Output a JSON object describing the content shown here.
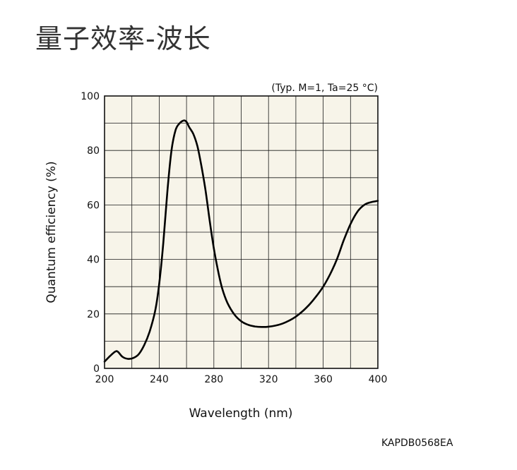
{
  "page": {
    "title": "量子效率-波长",
    "code": "KAPDB0568EA"
  },
  "colors": {
    "plot_background": "#f7f4e9",
    "grid": "#1a1a1a",
    "curve": "#000000"
  },
  "chart_data": {
    "type": "line",
    "title": "",
    "note": "(Typ. M=1, Ta=25 °C)",
    "xlabel": "Wavelength (nm)",
    "ylabel": "Quantum efficiency (%)",
    "xlim": [
      200,
      400
    ],
    "ylim": [
      0,
      100
    ],
    "xticks": [
      200,
      240,
      280,
      320,
      360,
      400
    ],
    "yticks": [
      0,
      20,
      40,
      60,
      80,
      100
    ],
    "x_grid_step": 20,
    "y_grid_step": 10,
    "grid": true,
    "series": [
      {
        "x": [
          200,
          204,
          208,
          210,
          213,
          217,
          221,
          225,
          229,
          233,
          237,
          240,
          243,
          246,
          249,
          252,
          255,
          258,
          260,
          262,
          265,
          268,
          271,
          274,
          277,
          280,
          283,
          286,
          290,
          295,
          300,
          305,
          310,
          315,
          320,
          325,
          330,
          335,
          340,
          345,
          350,
          355,
          360,
          365,
          370,
          375,
          380,
          385,
          390,
          395,
          400
        ],
        "y": [
          2.5,
          4.5,
          6.2,
          6.0,
          4.3,
          3.5,
          3.8,
          5.2,
          8.5,
          13.5,
          21.0,
          31.0,
          46.0,
          65.0,
          80.0,
          87.5,
          90.0,
          91.0,
          90.5,
          88.5,
          86.0,
          81.5,
          74.0,
          65.0,
          54.0,
          44.0,
          36.0,
          29.5,
          24.0,
          19.8,
          17.3,
          16.0,
          15.4,
          15.2,
          15.3,
          15.7,
          16.4,
          17.5,
          19.0,
          21.0,
          23.5,
          26.5,
          30.0,
          34.5,
          40.0,
          47.0,
          53.0,
          57.5,
          60.0,
          61.0,
          61.5
        ]
      }
    ]
  }
}
